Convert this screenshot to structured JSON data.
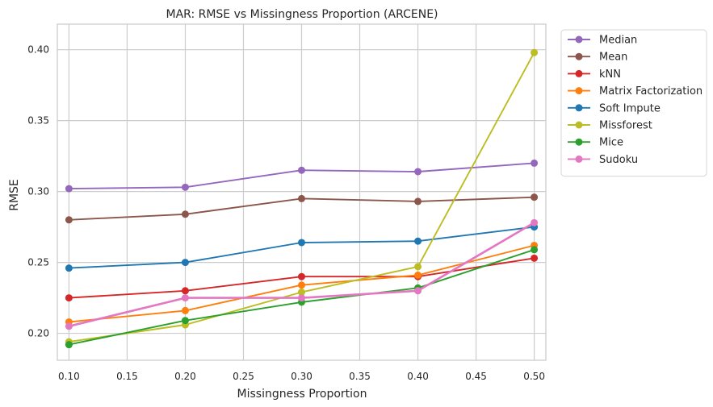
{
  "chart_data": {
    "type": "line",
    "title": "MAR: RMSE vs Missingness Proportion (ARCENE)",
    "xlabel": "Missingness Proportion",
    "ylabel": "RMSE",
    "xlim": [
      0.09,
      0.51
    ],
    "ylim": [
      0.181,
      0.418
    ],
    "xticks": [
      0.1,
      0.15,
      0.2,
      0.25,
      0.3,
      0.35,
      0.4,
      0.45,
      0.5
    ],
    "xtick_labels": [
      "0.10",
      "0.15",
      "0.20",
      "0.25",
      "0.30",
      "0.35",
      "0.40",
      "0.45",
      "0.50"
    ],
    "yticks": [
      0.2,
      0.25,
      0.3,
      0.35,
      0.4
    ],
    "ytick_labels": [
      "0.20",
      "0.25",
      "0.30",
      "0.35",
      "0.40"
    ],
    "grid": true,
    "legend_position": "outside-right-top",
    "x": [
      0.1,
      0.2,
      0.3,
      0.4,
      0.5
    ],
    "series": [
      {
        "name": "Median",
        "color": "#9467bd",
        "values": [
          0.302,
          0.303,
          0.315,
          0.314,
          0.32
        ]
      },
      {
        "name": "Mean",
        "color": "#8c564b",
        "values": [
          0.28,
          0.284,
          0.295,
          0.293,
          0.296
        ]
      },
      {
        "name": "kNN",
        "color": "#d62728",
        "values": [
          0.225,
          0.23,
          0.24,
          0.24,
          0.253
        ]
      },
      {
        "name": "Matrix Factorization",
        "color": "#ff7f0e",
        "values": [
          0.208,
          0.216,
          0.234,
          0.241,
          0.262
        ]
      },
      {
        "name": "Soft Impute",
        "color": "#1f77b4",
        "values": [
          0.246,
          0.25,
          0.264,
          0.265,
          0.275
        ]
      },
      {
        "name": "Missforest",
        "color": "#bcbd22",
        "values": [
          0.194,
          0.206,
          0.229,
          0.247,
          0.398
        ]
      },
      {
        "name": "Mice",
        "color": "#2ca02c",
        "values": [
          0.192,
          0.209,
          0.222,
          0.232,
          0.259
        ]
      },
      {
        "name": "Sudoku",
        "color": "#e377c2",
        "values": [
          0.205,
          0.225,
          0.225,
          0.23,
          0.278
        ]
      }
    ]
  }
}
